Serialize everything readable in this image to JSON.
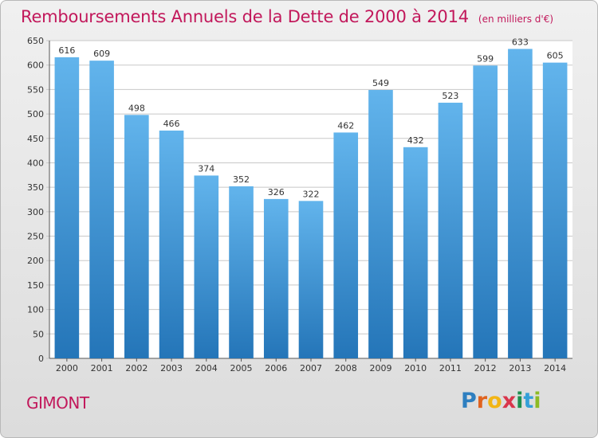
{
  "header": {
    "title": "Remboursements Annuels de la Dette de 2000 à 2014",
    "subtitle": "(en milliers d'€)"
  },
  "footer": {
    "city": "GIMONT",
    "logo_text": "Proxiti",
    "logo_letters": [
      "P",
      "r",
      "o",
      "x",
      "i",
      "t",
      "i"
    ]
  },
  "colors": {
    "title": "#c2185b",
    "bar_light": "#62b4ec",
    "bar_dark": "#2475b8",
    "grid": "#c8c8c8"
  },
  "chart_data": {
    "type": "bar",
    "title": "Remboursements Annuels de la Dette de 2000 à 2014",
    "subtitle": "(en milliers d'€)",
    "xlabel": "",
    "ylabel": "",
    "categories": [
      "2000",
      "2001",
      "2002",
      "2003",
      "2004",
      "2005",
      "2006",
      "2007",
      "2008",
      "2009",
      "2010",
      "2011",
      "2012",
      "2013",
      "2014"
    ],
    "values": [
      616,
      609,
      498,
      466,
      374,
      352,
      326,
      322,
      462,
      549,
      432,
      523,
      599,
      633,
      605
    ],
    "data_labels": [
      "616",
      "609",
      "498",
      "466",
      "374",
      "352",
      "326",
      "322",
      "462",
      "549",
      "432",
      "523",
      "599",
      "633",
      "605"
    ],
    "ylim": [
      0,
      650
    ],
    "yticks": [
      0,
      50,
      100,
      150,
      200,
      250,
      300,
      350,
      400,
      450,
      500,
      550,
      600,
      650
    ],
    "ytick_labels": [
      "0",
      "50",
      "100",
      "150",
      "200",
      "250",
      "300",
      "350",
      "400",
      "450",
      "500",
      "550",
      "600",
      "650"
    ],
    "grid": true,
    "legend": "none"
  }
}
